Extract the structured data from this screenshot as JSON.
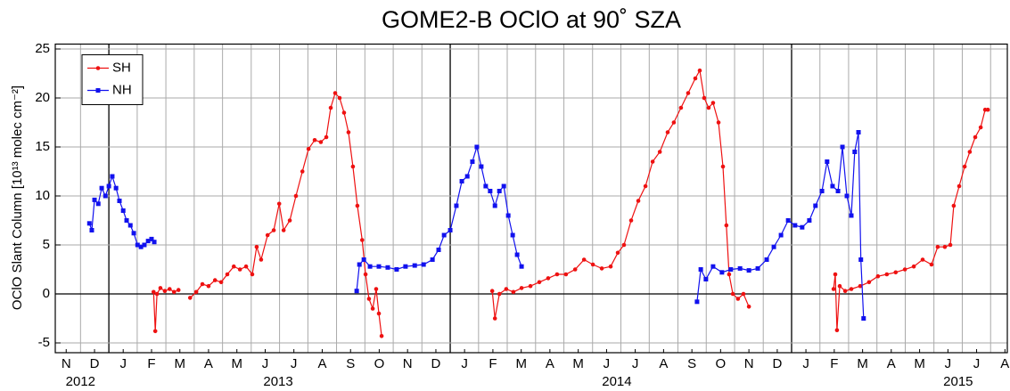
{
  "chart_data": {
    "type": "line",
    "title": "GOME2-B OClO at 90˚ SZA",
    "y_label": "OClO Slant Column [10¹³ molec cm⁻²]",
    "xlim": [
      2012.843,
      2015.632
    ],
    "ylim": [
      -6,
      25.5
    ],
    "yticks": [
      -5,
      0,
      5,
      10,
      15,
      20,
      25
    ],
    "grid": true,
    "legend": "upper left",
    "xticks": [
      {
        "value": 2012.875,
        "label": "N"
      },
      {
        "value": 2012.958,
        "label": "D"
      },
      {
        "value": 2013.042,
        "label": "J"
      },
      {
        "value": 2013.125,
        "label": "F"
      },
      {
        "value": 2013.208,
        "label": "M"
      },
      {
        "value": 2013.292,
        "label": "A"
      },
      {
        "value": 2013.375,
        "label": "M"
      },
      {
        "value": 2013.458,
        "label": "J"
      },
      {
        "value": 2013.542,
        "label": "J"
      },
      {
        "value": 2013.625,
        "label": "A"
      },
      {
        "value": 2013.708,
        "label": "S"
      },
      {
        "value": 2013.792,
        "label": "O"
      },
      {
        "value": 2013.875,
        "label": "N"
      },
      {
        "value": 2013.958,
        "label": "D"
      },
      {
        "value": 2014.042,
        "label": "J"
      },
      {
        "value": 2014.125,
        "label": "F"
      },
      {
        "value": 2014.208,
        "label": "M"
      },
      {
        "value": 2014.292,
        "label": "A"
      },
      {
        "value": 2014.375,
        "label": "M"
      },
      {
        "value": 2014.458,
        "label": "J"
      },
      {
        "value": 2014.542,
        "label": "J"
      },
      {
        "value": 2014.625,
        "label": "A"
      },
      {
        "value": 2014.708,
        "label": "S"
      },
      {
        "value": 2014.792,
        "label": "O"
      },
      {
        "value": 2014.875,
        "label": "N"
      },
      {
        "value": 2014.958,
        "label": "D"
      },
      {
        "value": 2015.042,
        "label": "J"
      },
      {
        "value": 2015.125,
        "label": "F"
      },
      {
        "value": 2015.208,
        "label": "M"
      },
      {
        "value": 2015.292,
        "label": "A"
      },
      {
        "value": 2015.375,
        "label": "M"
      },
      {
        "value": 2015.458,
        "label": "J"
      },
      {
        "value": 2015.542,
        "label": "J"
      },
      {
        "value": 2015.625,
        "label": "A"
      }
    ],
    "xgrid": [
      2012.917,
      2013,
      2013.083,
      2013.167,
      2013.25,
      2013.333,
      2013.417,
      2013.5,
      2013.583,
      2013.667,
      2013.75,
      2013.833,
      2013.917,
      2014,
      2014.083,
      2014.167,
      2014.25,
      2014.333,
      2014.417,
      2014.5,
      2014.583,
      2014.667,
      2014.75,
      2014.833,
      2014.917,
      2015,
      2015.083,
      2015.167,
      2015.25,
      2015.333,
      2015.417,
      2015.5,
      2015.583
    ],
    "year_labels": [
      {
        "value": 2012.917,
        "label": "2012"
      },
      {
        "value": 2013.496,
        "label": "2013"
      },
      {
        "value": 2014.488,
        "label": "2014"
      },
      {
        "value": 2015.488,
        "label": "2015"
      }
    ],
    "series": [
      {
        "name": "SH",
        "color": "#ee1111",
        "marker": "circle",
        "x": [
          2013.131,
          2013.136,
          2013.141,
          2013.151,
          2013.164,
          2013.178,
          2013.191,
          2013.204,
          null,
          2013.238,
          2013.256,
          2013.274,
          2013.292,
          2013.311,
          2013.329,
          2013.347,
          2013.366,
          2013.384,
          2013.402,
          2013.42,
          2013.433,
          2013.446,
          2013.465,
          2013.483,
          2013.499,
          2013.512,
          2013.53,
          2013.548,
          2013.567,
          2013.585,
          2013.603,
          2013.621,
          2013.637,
          2013.65,
          2013.663,
          2013.676,
          2013.689,
          2013.702,
          2013.715,
          2013.728,
          2013.742,
          2013.752,
          2013.762,
          2013.773,
          2013.783,
          2013.791,
          2013.799,
          null,
          2014.123,
          2014.131,
          2014.144,
          2014.164,
          2014.185,
          2014.209,
          2014.235,
          2014.261,
          2014.287,
          2014.313,
          2014.339,
          2014.366,
          2014.392,
          2014.418,
          2014.444,
          2014.47,
          2014.491,
          2014.509,
          2014.53,
          2014.551,
          2014.572,
          2014.593,
          2014.614,
          2014.637,
          2014.655,
          2014.676,
          2014.697,
          2014.718,
          2014.731,
          2014.744,
          2014.757,
          2014.77,
          2014.786,
          2014.799,
          2014.809,
          2014.817,
          2014.828,
          2014.843,
          2014.859,
          2014.875,
          null,
          2015.123,
          2015.128,
          2015.133,
          2015.141,
          2015.157,
          2015.175,
          2015.201,
          2015.227,
          2015.253,
          2015.279,
          2015.305,
          2015.332,
          2015.358,
          2015.384,
          2015.41,
          2015.428,
          2015.449,
          2015.465,
          2015.475,
          2015.491,
          2015.507,
          2015.522,
          2015.538,
          2015.554,
          2015.567,
          2015.575
        ],
        "values": [
          0.2,
          -3.8,
          0,
          0.6,
          0.3,
          0.5,
          0.2,
          0.4,
          null,
          -0.4,
          0.2,
          1,
          0.8,
          1.4,
          1.2,
          2,
          2.8,
          2.5,
          2.8,
          2,
          4.8,
          3.5,
          6,
          6.5,
          9.2,
          6.5,
          7.5,
          10,
          12.5,
          14.8,
          15.7,
          15.5,
          16,
          19,
          20.5,
          20,
          18.5,
          16.5,
          13,
          9,
          5.5,
          2,
          -0.5,
          -1.5,
          0.5,
          -2,
          -4.3,
          null,
          0.3,
          -2.5,
          0,
          0.5,
          0.2,
          0.6,
          0.8,
          1.2,
          1.6,
          2,
          2,
          2.5,
          3.5,
          3,
          2.6,
          2.8,
          4.2,
          5,
          7.5,
          9.5,
          11,
          13.5,
          14.5,
          16.5,
          17.5,
          19,
          20.5,
          22,
          22.8,
          20,
          19,
          19.5,
          17.5,
          13,
          7,
          2,
          0,
          -0.5,
          0,
          -1.3,
          null,
          0.5,
          2,
          -3.7,
          0.8,
          0.3,
          0.5,
          0.8,
          1.2,
          1.8,
          2,
          2.2,
          2.5,
          2.8,
          3.5,
          3,
          4.8,
          4.8,
          5,
          9,
          11,
          13,
          14.5,
          16,
          17,
          18.8,
          18.8
        ]
      },
      {
        "name": "NH",
        "color": "#1111ee",
        "marker": "square",
        "x": [
          2012.943,
          2012.95,
          2012.958,
          2012.969,
          2012.979,
          2012.99,
          2013,
          2013.01,
          2013.021,
          2013.031,
          2013.042,
          2013.052,
          2013.063,
          2013.073,
          2013.084,
          2013.094,
          2013.104,
          2013.115,
          2013.125,
          2013.133,
          null,
          2013.726,
          2013.734,
          2013.747,
          2013.765,
          2013.791,
          2013.817,
          2013.843,
          2013.869,
          2013.896,
          2013.922,
          2013.948,
          2013.966,
          2013.982,
          2014,
          2014.018,
          2014.034,
          2014.05,
          2014.065,
          2014.078,
          2014.091,
          2014.104,
          2014.117,
          2014.131,
          2014.144,
          2014.157,
          2014.17,
          2014.183,
          2014.196,
          2014.209,
          null,
          2014.723,
          2014.734,
          2014.749,
          2014.77,
          2014.796,
          2014.822,
          2014.849,
          2014.875,
          2014.901,
          2014.927,
          2014.948,
          2014.969,
          2014.99,
          2015.01,
          2015.031,
          2015.052,
          2015.07,
          2015.089,
          2015.104,
          2015.12,
          2015.136,
          2015.149,
          2015.162,
          2015.175,
          2015.185,
          2015.196,
          2015.203,
          2015.211
        ],
        "values": [
          7.2,
          6.5,
          9.6,
          9.2,
          10.8,
          10,
          11,
          12,
          10.8,
          9.5,
          8.5,
          7.5,
          7,
          6.2,
          5,
          4.8,
          5,
          5.4,
          5.6,
          5.3,
          null,
          0.3,
          3,
          3.5,
          2.8,
          2.8,
          2.7,
          2.5,
          2.8,
          2.9,
          3,
          3.5,
          4.5,
          6,
          6.5,
          9,
          11.5,
          12,
          13.5,
          15,
          13,
          11,
          10.5,
          9,
          10.5,
          11,
          8,
          6,
          4,
          2.8,
          null,
          -0.8,
          2.5,
          1.5,
          2.8,
          2.2,
          2.5,
          2.6,
          2.4,
          2.6,
          3.5,
          4.8,
          6,
          7.5,
          7,
          6.8,
          7.5,
          9,
          10.5,
          13.5,
          11,
          10.5,
          15,
          10,
          8,
          14.5,
          16.5,
          3.5,
          -2.5
        ]
      }
    ]
  }
}
